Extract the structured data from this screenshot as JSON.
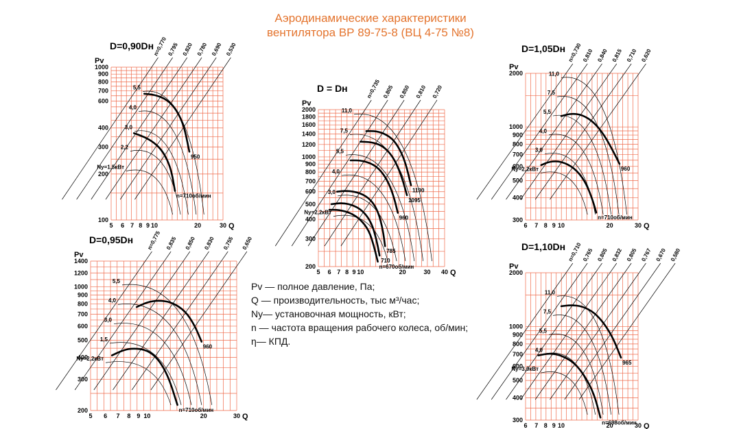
{
  "title": {
    "line1": "Аэродинамические характеристики",
    "line2": "вентилятора  ВР 89-75-8 (ВЦ 4-75 №8)"
  },
  "legend": {
    "pv": "Pv — полное давление, Па;",
    "q": "Q  — производительность, тыс м³/час;",
    "ny": "Ny— установочная мощность, кВт;",
    "n": "n — частота вращения рабочего колеса, об/мин;",
    "eta": "η— КПД."
  },
  "colors": {
    "grid": "#ef6a4a",
    "curve": "#000000",
    "title": "#e4742e"
  },
  "chart_data": [
    {
      "type": "line",
      "title": "D=0,90Dн",
      "xlabel": "Q",
      "ylabel": "Pv",
      "xlim": [
        5,
        30
      ],
      "ylim": [
        100,
        1000
      ],
      "xticks": [
        5,
        6,
        7,
        8,
        9,
        10,
        20,
        30
      ],
      "xtick_labels": [
        "5",
        "6",
        "7",
        "8",
        "9",
        "10",
        "20",
        "30"
      ],
      "yticks": [
        100,
        200,
        300,
        400,
        500,
        600,
        700,
        800,
        900,
        1000
      ],
      "ytick_labels": [
        "100",
        "200",
        "300",
        "400",
        "",
        "600",
        "700",
        "800",
        "900",
        "1000"
      ],
      "eta_labels": [
        "n=0,770",
        "0,795",
        "0,820",
        "0,780",
        "0,690",
        "0,530"
      ],
      "power_labels": [
        "Ny=1,5кВт",
        "2,2",
        "3,0",
        "4,0",
        "5,5"
      ],
      "series": [
        {
          "name": "n=710об/мин",
          "x": [
            7.2,
            8.5,
            10.0,
            11.5,
            13.0,
            13.9
          ],
          "y": [
            370,
            350,
            320,
            280,
            220,
            155
          ]
        },
        {
          "name": "950",
          "x": [
            8.5,
            10.0,
            12.0,
            14.0,
            16.0,
            17.5
          ],
          "y": [
            670,
            660,
            620,
            540,
            420,
            280
          ]
        }
      ]
    },
    {
      "type": "line",
      "title": "D = Dн",
      "xlabel": "Q",
      "ylabel": "Pv",
      "xlim": [
        5,
        40
      ],
      "ylim": [
        200,
        2000
      ],
      "xticks": [
        5,
        6,
        7,
        8,
        9,
        10,
        20,
        30,
        40
      ],
      "xtick_labels": [
        "5",
        "6",
        "7",
        "8",
        "9",
        "10",
        "20",
        "30",
        "40"
      ],
      "yticks": [
        200,
        300,
        400,
        500,
        600,
        700,
        800,
        900,
        1000,
        1200,
        1400,
        1600,
        1800,
        2000
      ],
      "ytick_labels": [
        "200",
        "300",
        "400",
        "500",
        "600",
        "700",
        "800",
        "900",
        "1000",
        "1200",
        "1400",
        "1600",
        "1800",
        "2000"
      ],
      "eta_labels": [
        "n=0,735",
        "0,805",
        "0,850",
        "0,810",
        "0,720"
      ],
      "power_labels": [
        "Ny=2,2кВт",
        "3,0",
        "4,0",
        "5,5",
        "7,5",
        "11,0"
      ],
      "series": [
        {
          "name": "n=670об/мин",
          "x": [
            6.0,
            7.0,
            8.5,
            10.0,
            11.5,
            12.5,
            13.3
          ],
          "y": [
            460,
            460,
            440,
            400,
            340,
            270,
            215
          ]
        },
        {
          "name": "710",
          "x": [
            6.2,
            7.5,
            9.0,
            10.5,
            12.0,
            13.0,
            13.7
          ],
          "y": [
            500,
            510,
            490,
            450,
            380,
            300,
            235
          ]
        },
        {
          "name": "785",
          "x": [
            6.8,
            8.0,
            10.0,
            12.0,
            13.5,
            14.5,
            15.0
          ],
          "y": [
            600,
            610,
            590,
            530,
            440,
            340,
            270
          ]
        },
        {
          "name": "960",
          "x": [
            8.5,
            10.0,
            12.0,
            14.0,
            16.0,
            17.5,
            18.5
          ],
          "y": [
            950,
            950,
            910,
            820,
            680,
            540,
            440
          ]
        },
        {
          "name": "1095",
          "x": [
            10.0,
            12.0,
            14.0,
            16.0,
            18.0,
            20.0,
            21.5
          ],
          "y": [
            1250,
            1240,
            1190,
            1080,
            920,
            720,
            570
          ]
        },
        {
          "name": "1190",
          "x": [
            11.0,
            13.0,
            15.0,
            17.0,
            19.0,
            21.0,
            23.0
          ],
          "y": [
            1460,
            1460,
            1400,
            1300,
            1130,
            920,
            660
          ]
        }
      ]
    },
    {
      "type": "line",
      "title": "D=1,05Dн",
      "xlabel": "Q",
      "ylabel": "Pv",
      "xlim": [
        6,
        30
      ],
      "ylim": [
        300,
        2000
      ],
      "xticks": [
        6,
        7,
        8,
        9,
        10,
        20,
        30
      ],
      "xtick_labels": [
        "6",
        "7",
        "8",
        "9",
        "10",
        "20",
        "30"
      ],
      "yticks": [
        300,
        400,
        500,
        600,
        700,
        800,
        900,
        1000,
        2000
      ],
      "ytick_labels": [
        "300",
        "400",
        "500",
        "600",
        "700",
        "800",
        "900",
        "1000",
        "2000"
      ],
      "eta_labels": [
        "n=0,730",
        "0,810",
        "0,840",
        "0,815",
        "0,710",
        "0,620"
      ],
      "power_labels": [
        "Ny=2,2кВт",
        "3,0",
        "4,0",
        "5,5",
        "7,5",
        "11,0"
      ],
      "series": [
        {
          "name": "n=710об/мин",
          "x": [
            7.5,
            8.5,
            10.0,
            12.0,
            14.0,
            15.5,
            16.5
          ],
          "y": [
            610,
            640,
            640,
            590,
            500,
            400,
            330
          ]
        },
        {
          "name": "960",
          "x": [
            10.0,
            11.5,
            13.5,
            16.0,
            18.5,
            21.0,
            23.0
          ],
          "y": [
            1150,
            1190,
            1170,
            1060,
            900,
            730,
            620
          ]
        }
      ]
    },
    {
      "type": "line",
      "title": "D=0,95Dн",
      "xlabel": "Q",
      "ylabel": "Pv",
      "xlim": [
        5,
        30
      ],
      "ylim": [
        200,
        1400
      ],
      "xticks": [
        5,
        6,
        7,
        8,
        9,
        10,
        20,
        30
      ],
      "xtick_labels": [
        "5",
        "6",
        "7",
        "8",
        "9",
        "10",
        "20",
        "30"
      ],
      "yticks": [
        200,
        300,
        400,
        500,
        600,
        700,
        800,
        900,
        1000,
        1200,
        1400
      ],
      "ytick_labels": [
        "200",
        "300",
        "400",
        "500",
        "600",
        "700",
        "800",
        "900",
        "1000",
        "1200",
        "1400"
      ],
      "eta_labels": [
        "n=0,775",
        "0,835",
        "0,850",
        "0,830",
        "0,755",
        "0,650"
      ],
      "power_labels": [
        "Ny=2,2кВт",
        "1,5",
        "3,0",
        "4,0",
        "5,5"
      ],
      "series": [
        {
          "name": "n=710об/мин",
          "x": [
            6.5,
            7.5,
            8.5,
            10.0,
            11.5,
            13.0,
            14.5
          ],
          "y": [
            410,
            440,
            450,
            440,
            390,
            310,
            215
          ]
        },
        {
          "name": "960",
          "x": [
            8.8,
            10.0,
            11.5,
            13.5,
            16.0,
            18.0,
            19.5
          ],
          "y": [
            770,
            820,
            840,
            820,
            730,
            600,
            490
          ]
        }
      ]
    },
    {
      "type": "line",
      "title": "D=1,10Dн",
      "xlabel": "Q",
      "ylabel": "Pv",
      "xlim": [
        6,
        30
      ],
      "ylim": [
        300,
        2000
      ],
      "xticks": [
        6,
        7,
        8,
        9,
        10,
        20,
        30
      ],
      "xtick_labels": [
        "6",
        "7",
        "8",
        "9",
        "10",
        "20",
        "30"
      ],
      "yticks": [
        300,
        400,
        500,
        600,
        700,
        800,
        900,
        1000,
        2000
      ],
      "ytick_labels": [
        "300",
        "400",
        "500",
        "600",
        "700",
        "800",
        "900",
        "1000",
        "2000"
      ],
      "eta_labels": [
        "n=0,710",
        "0,765",
        "0,805",
        "0,832",
        "0,805",
        "0,767",
        "0,670",
        "0,580"
      ],
      "power_labels": [
        "Ny=3,0кВт",
        "4,0",
        "5,5",
        "7,5",
        "11,0"
      ],
      "series": [
        {
          "name": "n=698об/мин",
          "x": [
            7.2,
            8.5,
            10.0,
            12.0,
            14.0,
            16.0,
            17.5
          ],
          "y": [
            690,
            710,
            690,
            630,
            530,
            420,
            310
          ]
        },
        {
          "name": "965",
          "x": [
            10.0,
            11.5,
            13.5,
            16.0,
            18.5,
            21.0,
            23.5
          ],
          "y": [
            1300,
            1320,
            1300,
            1200,
            1040,
            860,
            670
          ]
        }
      ]
    }
  ]
}
